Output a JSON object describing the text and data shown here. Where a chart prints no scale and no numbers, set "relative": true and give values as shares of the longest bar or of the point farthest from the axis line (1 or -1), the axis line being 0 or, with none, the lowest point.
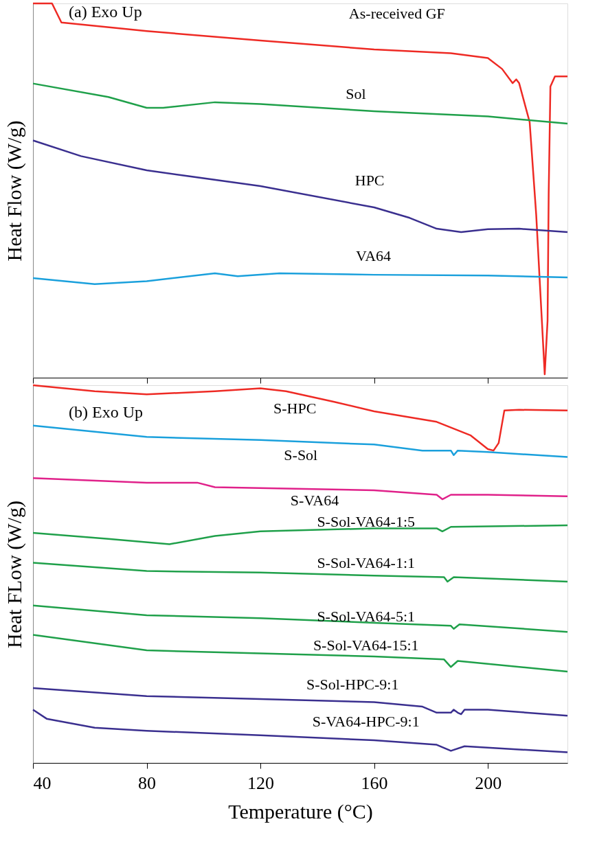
{
  "chart_data": [
    {
      "type": "line",
      "relative": true,
      "ylabel": "Heat Flow (W/g)",
      "annotations": [
        "(a)  Exo Up"
      ],
      "xlim": [
        40,
        228
      ],
      "xticks": [
        40,
        80,
        120,
        160,
        200
      ],
      "tick_labels": false,
      "series": [
        {
          "name": "As-received GF",
          "color": "#ee2a24",
          "x": [
            40,
            46.7,
            50,
            80,
            120,
            160,
            187,
            200,
            205,
            208.7,
            210,
            211,
            214.7,
            217,
            219,
            220,
            221,
            221.4,
            222,
            223.6,
            228
          ],
          "values": [
            1.0,
            1.0,
            0.949,
            0.926,
            0.901,
            0.877,
            0.867,
            0.854,
            0.825,
            0.787,
            0.797,
            0.787,
            0.683,
            0.436,
            0.152,
            0.009,
            0.152,
            0.493,
            0.778,
            0.805,
            0.805
          ]
        },
        {
          "name": "Sol",
          "color": "#1fa04a",
          "x": [
            40,
            66.5,
            80,
            85.8,
            104,
            120,
            160,
            200,
            228
          ],
          "values": [
            0.786,
            0.75,
            0.721,
            0.721,
            0.736,
            0.731,
            0.712,
            0.698,
            0.679
          ]
        },
        {
          "name": "HPC",
          "color": "#3a2f8f",
          "x": [
            40,
            56.9,
            80,
            120,
            160,
            172.5,
            182,
            190.6,
            200,
            211,
            228
          ],
          "values": [
            0.634,
            0.592,
            0.554,
            0.512,
            0.455,
            0.427,
            0.398,
            0.389,
            0.397,
            0.398,
            0.389
          ]
        },
        {
          "name": "VA64",
          "color": "#1aa0dc",
          "x": [
            40,
            61.7,
            80,
            104,
            112,
            126.7,
            160,
            200,
            228
          ],
          "values": [
            0.266,
            0.25,
            0.258,
            0.279,
            0.271,
            0.279,
            0.275,
            0.273,
            0.268
          ]
        }
      ]
    },
    {
      "type": "line",
      "relative": true,
      "xlabel": "Temperature (°C)",
      "ylabel": "Heat FLow (W/g)",
      "annotations": [
        "(b)  Exo Up"
      ],
      "xlim": [
        40,
        228
      ],
      "xticks": [
        40,
        80,
        120,
        160,
        200
      ],
      "tick_labels": "x",
      "series": [
        {
          "name": "S-HPC",
          "color": "#ee2a24",
          "x": [
            40,
            61.7,
            80,
            104,
            120,
            129,
            146,
            160,
            182,
            194,
            200,
            202,
            203.8,
            205.8,
            211,
            228
          ],
          "values": [
            1.0,
            0.984,
            0.976,
            0.984,
            0.992,
            0.984,
            0.956,
            0.931,
            0.903,
            0.867,
            0.831,
            0.827,
            0.847,
            0.933,
            0.935,
            0.933
          ]
        },
        {
          "name": "S-Sol",
          "color": "#1aa0dc",
          "x": [
            40,
            80,
            120,
            160,
            177,
            187,
            188,
            189.4,
            200,
            228
          ],
          "values": [
            0.893,
            0.863,
            0.855,
            0.843,
            0.827,
            0.827,
            0.815,
            0.827,
            0.823,
            0.81
          ]
        },
        {
          "name": "S-VA64",
          "color": "#e0218a",
          "x": [
            40,
            80,
            97.8,
            104,
            160,
            182,
            184,
            187,
            200,
            228
          ],
          "values": [
            0.754,
            0.742,
            0.742,
            0.73,
            0.722,
            0.71,
            0.698,
            0.71,
            0.71,
            0.706
          ]
        },
        {
          "name": "S-Sol-VA64-1:5",
          "color": "#1fa04a",
          "x": [
            40,
            66.5,
            88,
            104,
            120,
            160,
            182,
            184,
            187,
            228
          ],
          "values": [
            0.609,
            0.593,
            0.579,
            0.601,
            0.613,
            0.621,
            0.621,
            0.613,
            0.625,
            0.629
          ]
        },
        {
          "name": "S-Sol-VA64-1:1",
          "color": "#1fa04a",
          "x": [
            40,
            80,
            120,
            160,
            184.6,
            185.8,
            188,
            228
          ],
          "values": [
            0.53,
            0.508,
            0.504,
            0.496,
            0.492,
            0.48,
            0.492,
            0.48
          ]
        },
        {
          "name": "S-Sol-VA64-5:1",
          "color": "#1fa04a",
          "x": [
            40,
            80,
            120,
            160,
            187,
            188,
            190,
            228
          ],
          "values": [
            0.417,
            0.391,
            0.383,
            0.371,
            0.363,
            0.355,
            0.367,
            0.347
          ]
        },
        {
          "name": "S-Sol-VA64-15:1",
          "color": "#1fa04a",
          "x": [
            40,
            80,
            120,
            160,
            184.6,
            187,
            189.4,
            228
          ],
          "values": [
            0.339,
            0.298,
            0.29,
            0.282,
            0.274,
            0.254,
            0.27,
            0.242
          ]
        },
        {
          "name": "S-Sol-HPC-9:1",
          "color": "#3a2f8f",
          "x": [
            40,
            80,
            120,
            160,
            177,
            182,
            187,
            188,
            189.4,
            190.6,
            191.8,
            200,
            228
          ],
          "values": [
            0.198,
            0.177,
            0.169,
            0.161,
            0.149,
            0.133,
            0.133,
            0.141,
            0.133,
            0.129,
            0.141,
            0.141,
            0.125
          ]
        },
        {
          "name": "S-VA64-HPC-9:1",
          "color": "#3a2f8f",
          "x": [
            40,
            44.8,
            61.7,
            80,
            120,
            160,
            182,
            187,
            191.8,
            228
          ],
          "values": [
            0.141,
            0.117,
            0.093,
            0.085,
            0.073,
            0.06,
            0.048,
            0.032,
            0.044,
            0.028
          ]
        }
      ]
    }
  ]
}
